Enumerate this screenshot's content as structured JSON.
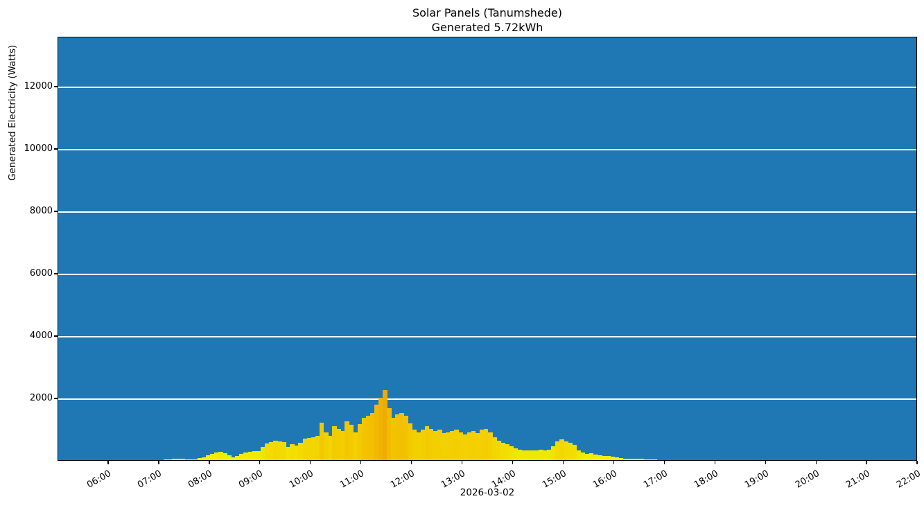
{
  "figure": {
    "title_line1": "Solar Panels (Tanumshede)",
    "title_line2": "Generated 5.72kWh",
    "background": "#ffffff"
  },
  "chart_data": {
    "type": "bar",
    "title": "Solar Panels (Tanumshede)",
    "subtitle": "Generated 5.72kWh",
    "xlabel": "2026-03-02",
    "ylabel": "Generated Electricity (Watts)",
    "plot_background": "#1f77b4",
    "grid_color": "#ffffff",
    "grid": "horizontal",
    "legend": "none",
    "ylim": [
      0,
      13600
    ],
    "ytick_values": [
      2000,
      4000,
      6000,
      8000,
      10000,
      12000
    ],
    "x_domain": [
      "05:00",
      "22:00"
    ],
    "xtick_labels": [
      "06:00",
      "07:00",
      "08:00",
      "09:00",
      "10:00",
      "11:00",
      "12:00",
      "13:00",
      "14:00",
      "15:00",
      "16:00",
      "17:00",
      "18:00",
      "19:00",
      "20:00",
      "21:00",
      "22:00"
    ],
    "bar_color_scale": {
      "description": "bar fill varies with value: bright yellow (low) to gold to orange (high)",
      "stops": [
        [
          0,
          "#f4f400"
        ],
        [
          300,
          "#f1e900"
        ],
        [
          600,
          "#f3d900"
        ],
        [
          1000,
          "#f3cd00"
        ],
        [
          1500,
          "#f2c000"
        ],
        [
          2300,
          "#eeab00"
        ]
      ]
    },
    "series": {
      "start_time": "07:05",
      "interval_minutes": 5,
      "unit": "W",
      "values_watts": [
        25,
        30,
        35,
        40,
        35,
        25,
        25,
        30,
        60,
        90,
        145,
        200,
        245,
        275,
        220,
        160,
        100,
        130,
        200,
        245,
        260,
        280,
        300,
        420,
        540,
        570,
        620,
        600,
        580,
        430,
        505,
        465,
        560,
        700,
        720,
        740,
        780,
        1200,
        900,
        780,
        1090,
        1010,
        935,
        1240,
        1130,
        900,
        1150,
        1360,
        1430,
        1510,
        1780,
        2010,
        2250,
        1660,
        1360,
        1470,
        1510,
        1430,
        1170,
        970,
        900,
        970,
        1090,
        1010,
        935,
        970,
        860,
        900,
        935,
        970,
        900,
        820,
        900,
        935,
        860,
        970,
        1010,
        900,
        740,
        630,
        550,
        510,
        440,
        380,
        330,
        320,
        320,
        320,
        320,
        330,
        320,
        330,
        440,
        590,
        670,
        590,
        550,
        480,
        320,
        250,
        210,
        230,
        170,
        150,
        140,
        130,
        110,
        90,
        70,
        55,
        50,
        45,
        40,
        35,
        30,
        25,
        20
      ]
    }
  }
}
